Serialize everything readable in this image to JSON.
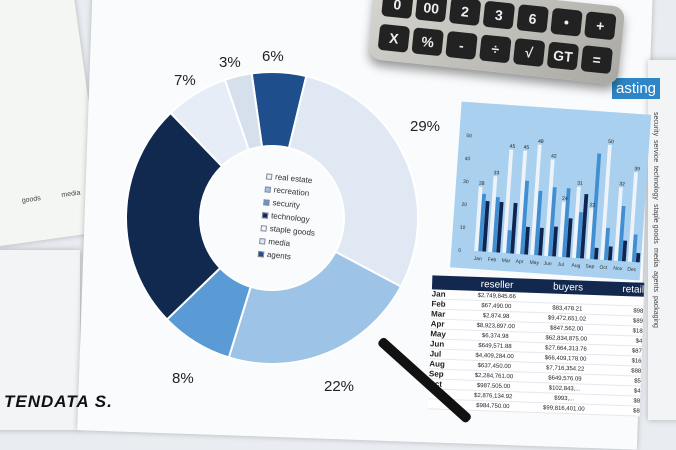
{
  "donut_chart": {
    "percent_labels": [
      "6%",
      "29%",
      "22%",
      "8%",
      "7%",
      "3%"
    ],
    "slices": [
      {
        "value": 6,
        "color": "#1f4e8c"
      },
      {
        "value": 29,
        "color": "#dfe8f3"
      },
      {
        "value": 22,
        "color": "#9dc3e7"
      },
      {
        "value": 8,
        "color": "#5b9bd5"
      },
      {
        "value": 25,
        "color": "#11284f"
      },
      {
        "value": 7,
        "color": "#e6edf6"
      },
      {
        "value": 3,
        "color": "#d6e0ec"
      }
    ],
    "legend": [
      {
        "label": "real estate",
        "color": "#eef2f8"
      },
      {
        "label": "recreation",
        "color": "#9dc3e7"
      },
      {
        "label": "security",
        "color": "#5b9bd5"
      },
      {
        "label": "technology",
        "color": "#11284f"
      },
      {
        "label": "staple goods",
        "color": "#f4f6f9"
      },
      {
        "label": "media",
        "color": "#dfe8f3"
      },
      {
        "label": "agents",
        "color": "#1f4e8c"
      }
    ]
  },
  "bar_chart": {
    "months": [
      "Jan",
      "Feb",
      "Mar",
      "Apr",
      "May",
      "Jun",
      "Jul",
      "Aug",
      "Sep",
      "Oct",
      "Nov",
      "Dec"
    ],
    "y_ticks": [
      "0",
      "10",
      "20",
      "30",
      "40",
      "50"
    ],
    "value_labels": [
      "28",
      "33",
      "45",
      "45",
      "48",
      "42",
      "24",
      "31",
      "22",
      "50",
      "32",
      "39"
    ],
    "series": [
      [
        28,
        33,
        45,
        45,
        48,
        42,
        24,
        31,
        22,
        50,
        32,
        39
      ],
      [
        25,
        24,
        10,
        32,
        28,
        30,
        30,
        20,
        46,
        14,
        24,
        12
      ],
      [
        22,
        22,
        22,
        12,
        12,
        13,
        17,
        28,
        5,
        6,
        9,
        4
      ]
    ],
    "colors": [
      "#eef3f9",
      "#3f8fd2",
      "#0f2450"
    ]
  },
  "table": {
    "headers": [
      "reseller",
      "buyers",
      "retail"
    ],
    "rows": [
      {
        "month": "Jan",
        "reseller": "$2,749,845.66",
        "buyers": "",
        "retail": ""
      },
      {
        "month": "Feb",
        "reseller": "$67,490.00",
        "buyers": "$83,478.21",
        "retail": "$98"
      },
      {
        "month": "Mar",
        "reseller": "$2,874.98",
        "buyers": "$9,472,651.02",
        "retail": "$89"
      },
      {
        "month": "Apr",
        "reseller": "$8,923,897.00",
        "buyers": "$847,562.00",
        "retail": "$18"
      },
      {
        "month": "May",
        "reseller": "$6,374.98",
        "buyers": "$62,834,875.00",
        "retail": "$4"
      },
      {
        "month": "Jun",
        "reseller": "$649,571.88",
        "buyers": "$27,664,313.76",
        "retail": "$87"
      },
      {
        "month": "Jul",
        "reseller": "$4,409,284.00",
        "buyers": "$66,409,178.00",
        "retail": "$16"
      },
      {
        "month": "Aug",
        "reseller": "$637,450.00",
        "buyers": "$7,716,354.22",
        "retail": "$88"
      },
      {
        "month": "Sep",
        "reseller": "$2,284,761.00",
        "buyers": "$649,576.09",
        "retail": "$5"
      },
      {
        "month": "Oct",
        "reseller": "$987,505.00",
        "buyers": "$102,843,...",
        "retail": "$4"
      },
      {
        "month": "",
        "reseller": "$2,876,134.92",
        "buyers": "$993,...",
        "retail": "$8"
      },
      {
        "month": "",
        "reseller": "$984,750.00",
        "buyers": "$99,816,401.00",
        "retail": "$8"
      }
    ]
  },
  "calculator": {
    "keys": [
      "0",
      "00",
      "2",
      "3",
      "6",
      "•",
      "+",
      "X",
      "%",
      "-",
      "÷",
      "√",
      "GT",
      "="
    ]
  },
  "forecast_tab": "asting",
  "left_paper": {
    "labels": [
      "goods",
      "media"
    ]
  },
  "side_legend": [
    "security",
    "service",
    "technology",
    "staple goods",
    "media",
    "agents",
    "packaging"
  ],
  "watermark": "TENDATA S."
}
